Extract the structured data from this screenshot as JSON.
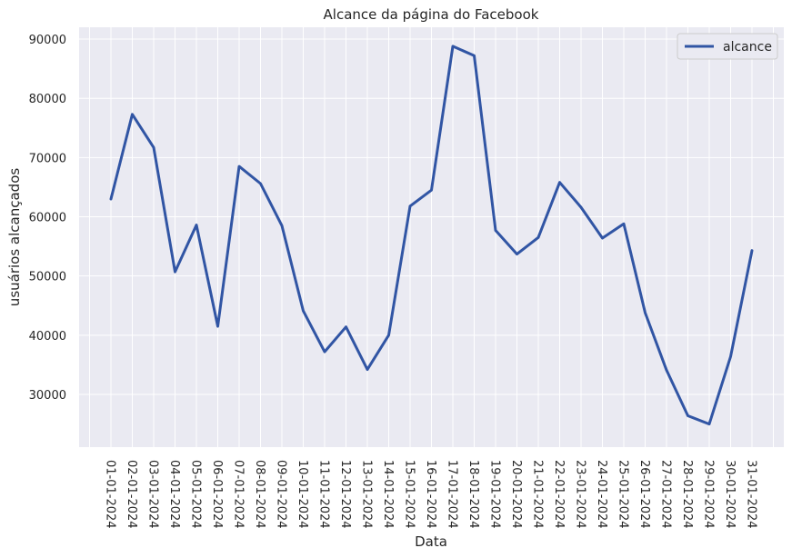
{
  "chart_data": {
    "type": "line",
    "title": "Alcance da página do Facebook",
    "xlabel": "Data",
    "ylabel": "usuários alcançados",
    "categories": [
      "01-01-2024",
      "02-01-2024",
      "03-01-2024",
      "04-01-2024",
      "05-01-2024",
      "06-01-2024",
      "07-01-2024",
      "08-01-2024",
      "09-01-2024",
      "10-01-2024",
      "11-01-2024",
      "12-01-2024",
      "13-01-2024",
      "14-01-2024",
      "15-01-2024",
      "16-01-2024",
      "17-01-2024",
      "18-01-2024",
      "19-01-2024",
      "20-01-2024",
      "21-01-2024",
      "22-01-2024",
      "23-01-2024",
      "24-01-2024",
      "25-01-2024",
      "26-01-2024",
      "27-01-2024",
      "28-01-2024",
      "29-01-2024",
      "30-01-2024",
      "31-01-2024"
    ],
    "series": [
      {
        "name": "alcance",
        "color": "#3155a4",
        "values": [
          63000,
          77300,
          71700,
          50700,
          58600,
          41500,
          68500,
          65600,
          58500,
          44100,
          37200,
          41400,
          34200,
          40000,
          61800,
          64500,
          88800,
          87200,
          57700,
          53700,
          56500,
          65800,
          61600,
          56400,
          58800,
          43800,
          34100,
          26400,
          25000,
          36400,
          54300
        ]
      }
    ],
    "yticks": [
      30000,
      40000,
      50000,
      60000,
      70000,
      80000,
      90000
    ],
    "ylim": [
      21100,
      92000
    ],
    "grid": true,
    "legend": "top-right",
    "background": "#eaeaf2"
  }
}
